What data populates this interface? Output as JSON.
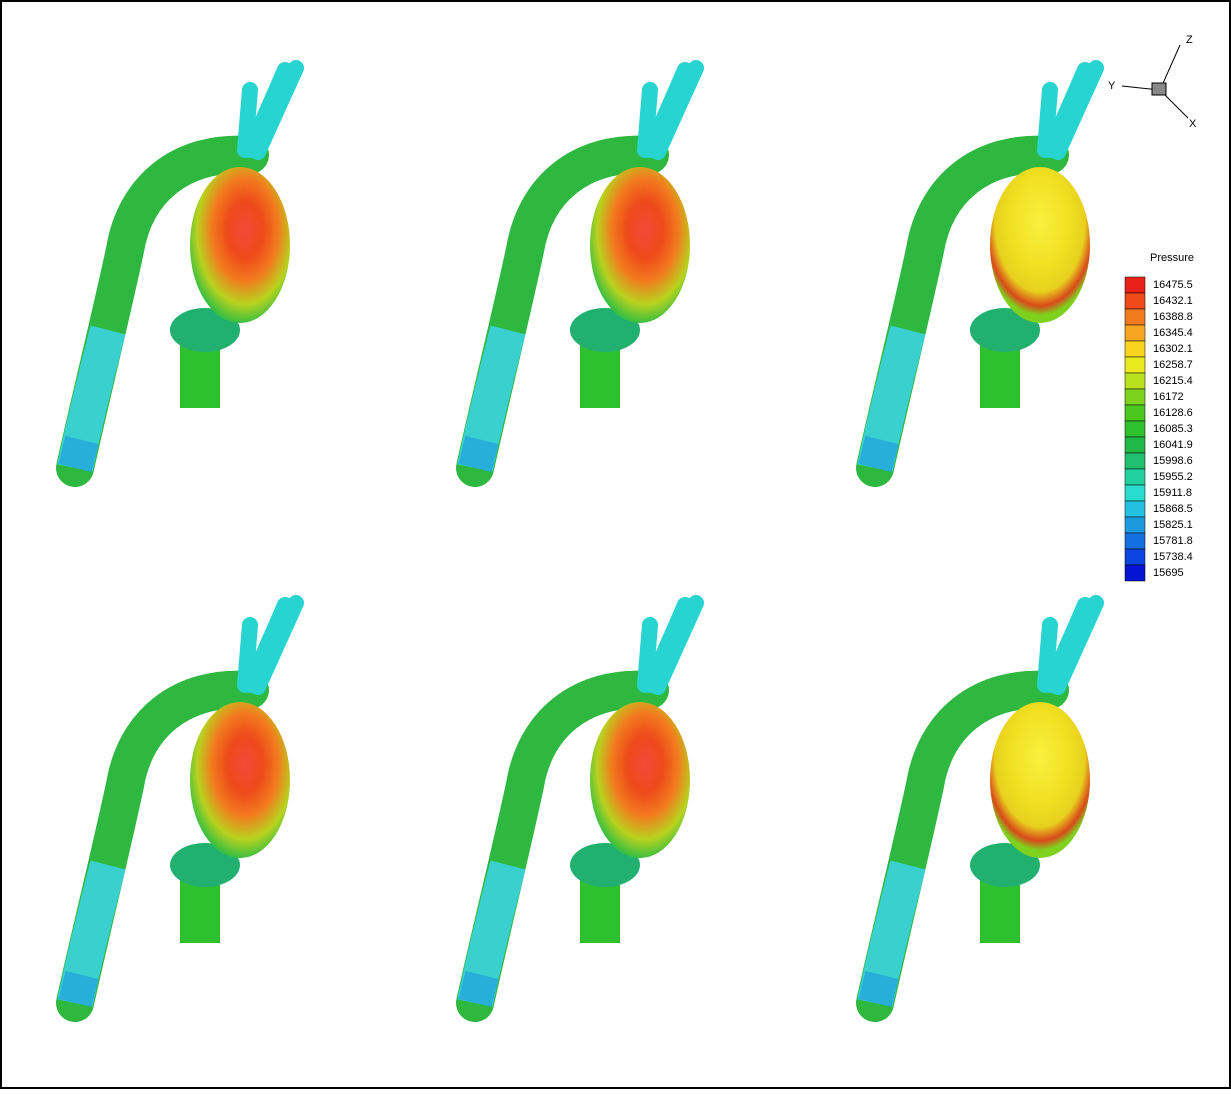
{
  "axes": {
    "z": "Z",
    "y": "Y",
    "x": "X"
  },
  "legend": {
    "title": "Pressure",
    "levels": [
      16475.5,
      16432.1,
      16388.8,
      16345.4,
      16302.1,
      16258.7,
      16215.4,
      16172,
      16128.6,
      16085.3,
      16041.9,
      15998.6,
      15955.2,
      15911.8,
      15868.5,
      15825.1,
      15781.8,
      15738.4,
      15695
    ],
    "colors": [
      "#e8221a",
      "#ee4a1a",
      "#f27a1e",
      "#f7a522",
      "#f8d41f",
      "#e8ea1e",
      "#b8e21e",
      "#7ed21e",
      "#4ac81e",
      "#2fc030",
      "#22b848",
      "#20c070",
      "#22d0a0",
      "#28dcd0",
      "#24c0e0",
      "#1c9ae0",
      "#1470e0",
      "#0c44e0",
      "#0414d0"
    ]
  }
}
